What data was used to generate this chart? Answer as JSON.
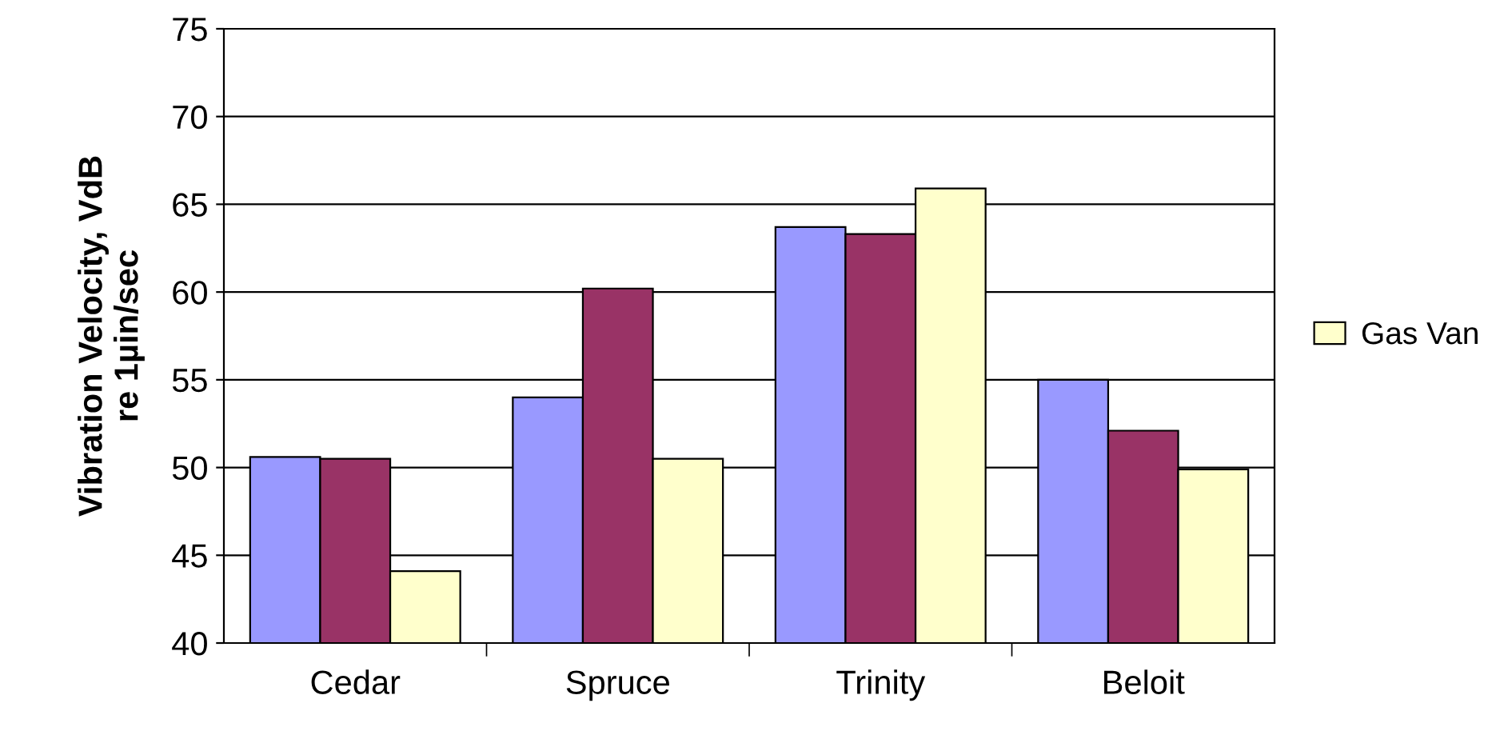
{
  "chart_data": {
    "type": "bar",
    "ylabel": "Vibration Velocity, VdB\nre 1µin/sec",
    "categories": [
      "Cedar",
      "Spruce",
      "Trinity",
      "Beloit"
    ],
    "series": [
      {
        "color": "#9999ff",
        "values": [
          50.6,
          54.0,
          63.7,
          55.0
        ]
      },
      {
        "color": "#993366",
        "values": [
          50.5,
          60.2,
          63.3,
          52.1
        ]
      },
      {
        "name": "Gas Van",
        "color": "#ffffcc",
        "values": [
          44.1,
          50.5,
          65.9,
          49.9
        ]
      }
    ],
    "ylim": [
      40,
      75
    ],
    "yticks": [
      40,
      45,
      50,
      55,
      60,
      65,
      70,
      75
    ],
    "grid": "y",
    "legend": "right"
  }
}
